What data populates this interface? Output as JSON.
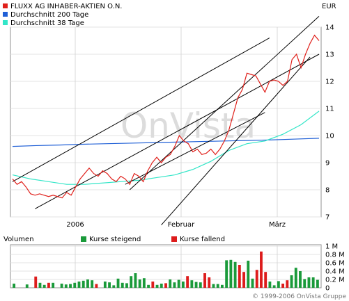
{
  "currency": "EUR",
  "watermark": "OnVista",
  "copyright": "© 1999-2006 OnVista Gruppe",
  "volume_title": "Volumen",
  "legend": [
    {
      "label": "FLUXX AG INHABER-AKTIEN O.N.",
      "color": "#e0201b"
    },
    {
      "label": "Durchschnitt 200 Tage",
      "color": "#1f5fd6"
    },
    {
      "label": "Durchschnitt 38 Tage",
      "color": "#33e6c8"
    }
  ],
  "volume_legend": [
    {
      "label": "Kurse steigend",
      "color": "#1a9a3a"
    },
    {
      "label": "Kurse fallend",
      "color": "#dd1c1c"
    }
  ],
  "chart_data": [
    {
      "type": "line",
      "x_labels": [
        "2006",
        "Februar",
        "März"
      ],
      "ylim": [
        7,
        14
      ],
      "yticks": [
        7,
        8,
        9,
        10,
        11,
        12,
        13,
        14
      ],
      "grid": true,
      "series": [
        {
          "name": "FLUXX AG INHABER-AKTIEN O.N.",
          "color": "#e0201b",
          "values": [
            8.4,
            8.2,
            8.3,
            8.1,
            7.85,
            7.8,
            7.85,
            7.8,
            7.75,
            7.8,
            7.75,
            7.7,
            7.9,
            7.8,
            8.1,
            8.4,
            8.6,
            8.8,
            8.6,
            8.5,
            8.7,
            8.6,
            8.4,
            8.3,
            8.5,
            8.4,
            8.2,
            8.6,
            8.5,
            8.3,
            8.7,
            9.0,
            9.2,
            9.0,
            9.2,
            9.3,
            9.6,
            10.0,
            9.8,
            9.7,
            9.4,
            9.5,
            9.3,
            9.35,
            9.5,
            9.3,
            9.5,
            9.8,
            10.2,
            10.8,
            11.4,
            11.7,
            12.3,
            12.25,
            12.2,
            11.9,
            11.6,
            12.0,
            12.05,
            12.0,
            11.85,
            12.0,
            12.8,
            13.0,
            12.5,
            13.0,
            13.4,
            13.7,
            13.5
          ]
        },
        {
          "name": "Durchschnitt 200 Tage",
          "color": "#1f5fd6",
          "values": [
            9.6,
            9.63,
            9.65,
            9.68,
            9.7,
            9.72,
            9.74,
            9.76,
            9.78,
            9.8,
            9.82,
            9.84,
            9.87,
            9.9
          ]
        },
        {
          "name": "Durchschnitt 38 Tage",
          "color": "#33e6c8",
          "values": [
            8.55,
            8.4,
            8.3,
            8.2,
            8.2,
            8.25,
            8.3,
            8.35,
            8.45,
            8.55,
            8.75,
            9.05,
            9.45,
            9.7,
            9.8,
            10.05,
            10.4,
            10.9
          ]
        }
      ],
      "trendlines": [
        {
          "from": [
            0,
            8.3
          ],
          "to": [
            57,
            13.6
          ]
        },
        {
          "from": [
            5,
            7.3
          ],
          "to": [
            68,
            13.0
          ]
        },
        {
          "from": [
            26,
            8.0
          ],
          "to": [
            68,
            14.4
          ]
        },
        {
          "from": [
            33,
            6.7
          ],
          "to": [
            66,
            12.9
          ]
        },
        {
          "from": [
            25,
            8.2
          ],
          "to": [
            56,
            10.85
          ]
        }
      ]
    },
    {
      "type": "bar",
      "title": "Volumen",
      "ylim": [
        0,
        1
      ],
      "ytick_labels": [
        "0",
        "0.2 M",
        "0.4 M",
        "0.6 M",
        "0.8 M",
        "1 M"
      ],
      "values": [
        0.1,
        0,
        0,
        0.08,
        0,
        0.27,
        0.12,
        0.07,
        0.12,
        0.12,
        0,
        0.1,
        0.08,
        0.09,
        0.12,
        0.15,
        0.17,
        0.2,
        0.18,
        0.09,
        0,
        0.15,
        0.13,
        0.06,
        0.22,
        0.12,
        0.11,
        0.28,
        0.35,
        0.2,
        0.23,
        0.07,
        0.15,
        0.07,
        0.1,
        0.11,
        0.2,
        0.13,
        0.19,
        0.15,
        0.28,
        0.18,
        0.14,
        0.13,
        0.35,
        0.25,
        0.09,
        0.09,
        0.07,
        0.66,
        0.67,
        0.62,
        0.55,
        0.38,
        0.65,
        0.22,
        0.43,
        0.87,
        0.38,
        0.15,
        0.06,
        0.16,
        0.1,
        0.18,
        0.3,
        0.48,
        0.4,
        0.21,
        0.25,
        0.25,
        0.19
      ],
      "rising": [
        1,
        1,
        1,
        1,
        1,
        0,
        1,
        1,
        0,
        1,
        0,
        1,
        1,
        1,
        1,
        1,
        1,
        1,
        1,
        0,
        1,
        1,
        1,
        1,
        1,
        1,
        1,
        1,
        1,
        1,
        1,
        1,
        0,
        1,
        1,
        0,
        1,
        1,
        1,
        1,
        0,
        1,
        1,
        1,
        0,
        0,
        1,
        1,
        1,
        1,
        1,
        1,
        0,
        0,
        1,
        1,
        0,
        0,
        0,
        1,
        1,
        1,
        0,
        0,
        1,
        1,
        1,
        1,
        1,
        1,
        1
      ]
    }
  ]
}
